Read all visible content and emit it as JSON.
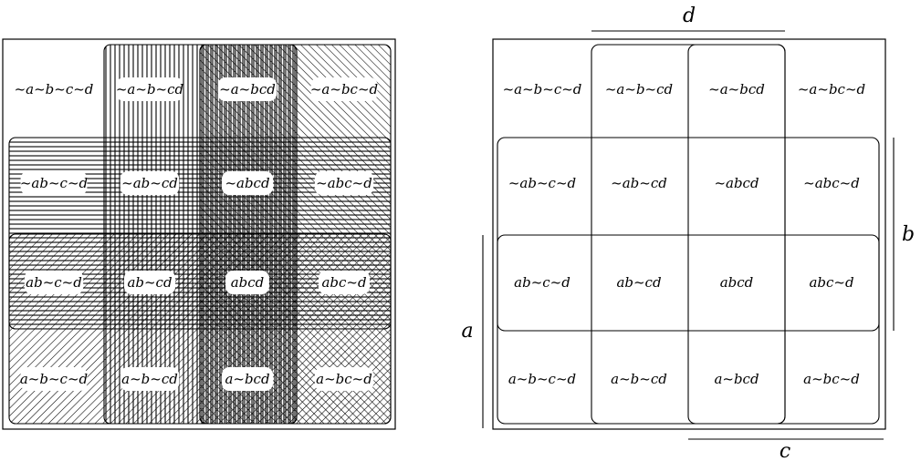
{
  "diagrams": {
    "left": {
      "rows": [
        [
          "~a~b~c~d",
          "~a~b~cd",
          "~a~bcd",
          "~a~bc~d"
        ],
        [
          "~ab~c~d",
          "~ab~cd",
          "~abcd",
          "~abc~d"
        ],
        [
          "ab~c~d",
          "ab~cd",
          "abcd",
          "abc~d"
        ],
        [
          "a~b~c~d",
          "a~b~cd",
          "a~bcd",
          "a~bc~d"
        ]
      ]
    },
    "right": {
      "rows": [
        [
          "~a~b~c~d",
          "~a~b~cd",
          "~a~bcd",
          "~a~bc~d"
        ],
        [
          "~ab~c~d",
          "~ab~cd",
          "~abcd",
          "~abc~d"
        ],
        [
          "ab~c~d",
          "ab~cd",
          "abcd",
          "abc~d"
        ],
        [
          "a~b~c~d",
          "a~b~cd",
          "a~bcd",
          "a~bc~d"
        ]
      ],
      "axis_labels": {
        "d": "d",
        "b": "b",
        "a": "a",
        "c": "c"
      }
    }
  }
}
